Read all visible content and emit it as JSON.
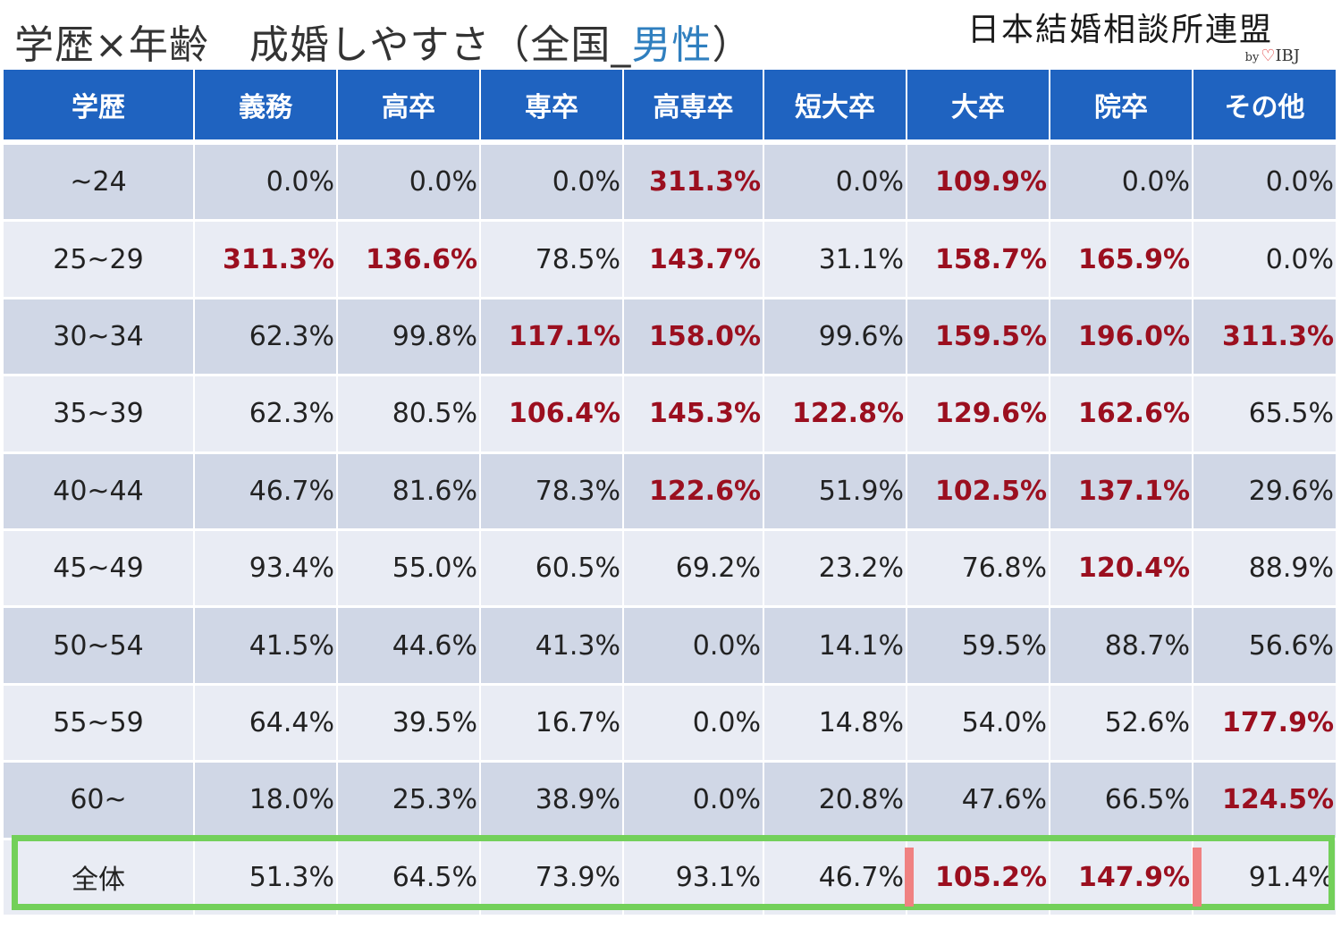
{
  "title": {
    "main": "学歴×年齢　成婚しやすさ（全国_",
    "sex": "男性",
    "close": "）"
  },
  "logo": {
    "name": "日本結婚相談所連盟",
    "by": "by",
    "brand": "IBJ"
  },
  "colors": {
    "header_bg": "#1f63c0",
    "row_dark": "#d0d7e6",
    "row_light": "#e9ecf4",
    "highlight_text": "#9b0f1f",
    "total_box": "#73d05a",
    "mark": "#f08181",
    "sex_text": "#2f7fbf"
  },
  "table": {
    "headers": [
      "学歴",
      "義務",
      "高卒",
      "専卒",
      "高専卒",
      "短大卒",
      "大卒",
      "院卒",
      "その他"
    ],
    "rows": [
      {
        "label": "~24",
        "values": [
          "0.0%",
          "0.0%",
          "0.0%",
          "311.3%",
          "0.0%",
          "109.9%",
          "0.0%",
          "0.0%"
        ],
        "highlight": [
          false,
          false,
          false,
          true,
          false,
          true,
          false,
          false
        ]
      },
      {
        "label": "25~29",
        "values": [
          "311.3%",
          "136.6%",
          "78.5%",
          "143.7%",
          "31.1%",
          "158.7%",
          "165.9%",
          "0.0%"
        ],
        "highlight": [
          true,
          true,
          false,
          true,
          false,
          true,
          true,
          false
        ]
      },
      {
        "label": "30~34",
        "values": [
          "62.3%",
          "99.8%",
          "117.1%",
          "158.0%",
          "99.6%",
          "159.5%",
          "196.0%",
          "311.3%"
        ],
        "highlight": [
          false,
          false,
          true,
          true,
          false,
          true,
          true,
          true
        ]
      },
      {
        "label": "35~39",
        "values": [
          "62.3%",
          "80.5%",
          "106.4%",
          "145.3%",
          "122.8%",
          "129.6%",
          "162.6%",
          "65.5%"
        ],
        "highlight": [
          false,
          false,
          true,
          true,
          true,
          true,
          true,
          false
        ]
      },
      {
        "label": "40~44",
        "values": [
          "46.7%",
          "81.6%",
          "78.3%",
          "122.6%",
          "51.9%",
          "102.5%",
          "137.1%",
          "29.6%"
        ],
        "highlight": [
          false,
          false,
          false,
          true,
          false,
          true,
          true,
          false
        ]
      },
      {
        "label": "45~49",
        "values": [
          "93.4%",
          "55.0%",
          "60.5%",
          "69.2%",
          "23.2%",
          "76.8%",
          "120.4%",
          "88.9%"
        ],
        "highlight": [
          false,
          false,
          false,
          false,
          false,
          false,
          true,
          false
        ]
      },
      {
        "label": "50~54",
        "values": [
          "41.5%",
          "44.6%",
          "41.3%",
          "0.0%",
          "14.1%",
          "59.5%",
          "88.7%",
          "56.6%"
        ],
        "highlight": [
          false,
          false,
          false,
          false,
          false,
          false,
          false,
          false
        ]
      },
      {
        "label": "55~59",
        "values": [
          "64.4%",
          "39.5%",
          "16.7%",
          "0.0%",
          "14.8%",
          "54.0%",
          "52.6%",
          "177.9%"
        ],
        "highlight": [
          false,
          false,
          false,
          false,
          false,
          false,
          false,
          true
        ]
      },
      {
        "label": "60~",
        "values": [
          "18.0%",
          "25.3%",
          "38.9%",
          "0.0%",
          "20.8%",
          "47.6%",
          "66.5%",
          "124.5%"
        ],
        "highlight": [
          false,
          false,
          false,
          false,
          false,
          false,
          false,
          true
        ]
      },
      {
        "label": "全体",
        "values": [
          "51.3%",
          "64.5%",
          "73.9%",
          "93.1%",
          "46.7%",
          "105.2%",
          "147.9%",
          "91.4%"
        ],
        "highlight": [
          false,
          false,
          false,
          false,
          false,
          true,
          true,
          false
        ]
      }
    ]
  }
}
